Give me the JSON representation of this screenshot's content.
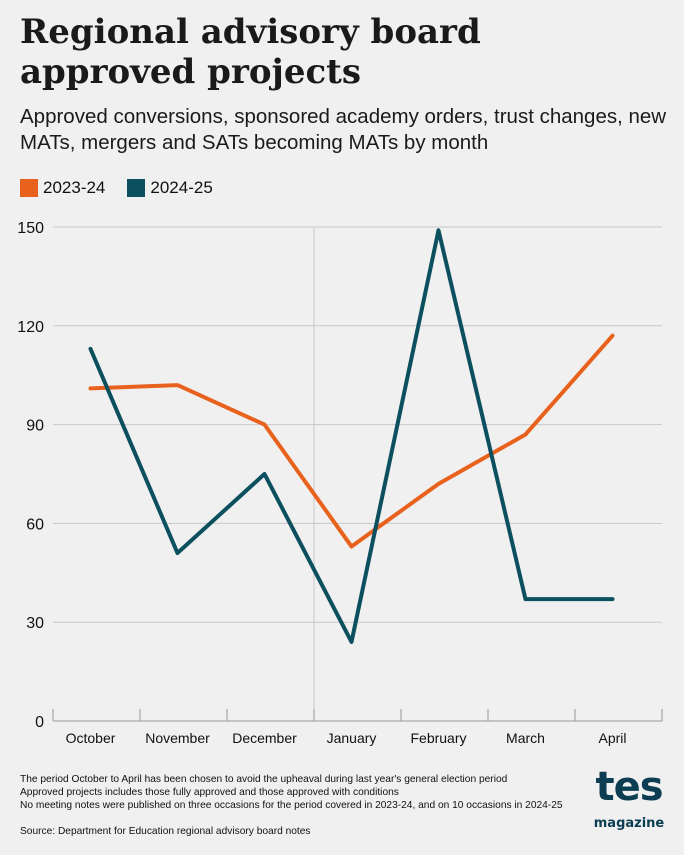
{
  "header": {
    "title": "Regional advisory board approved projects",
    "subtitle": "Approved conversions, sponsored academy orders, trust changes, new MATs, mergers and SATs becoming MATs by month"
  },
  "legend": [
    {
      "label": "2023-24",
      "color": "#e8621e"
    },
    {
      "label": "2024-25",
      "color": "#0c4f5e"
    }
  ],
  "chart_data": {
    "type": "line",
    "title": "Regional advisory board approved projects",
    "categories": [
      "October",
      "November",
      "December",
      "January",
      "February",
      "March",
      "April"
    ],
    "series": [
      {
        "name": "2023-24",
        "color": "#e8621e",
        "values": [
          101,
          102,
          90,
          53,
          72,
          87,
          117
        ]
      },
      {
        "name": "2024-25",
        "color": "#0c4f5e",
        "values": [
          113,
          51,
          75,
          24,
          149,
          37,
          37
        ]
      }
    ],
    "yticks": [
      0,
      30,
      60,
      90,
      120,
      150
    ],
    "ylim": [
      0,
      150
    ],
    "grid": true,
    "legend_position": "top-left"
  },
  "notes": [
    "The period October to April has been chosen to avoid the upheaval during last year's general election period",
    "Approved projects includes those fully approved and those approved with conditions",
    "No meeting notes were published on three occasions for the period covered in 2023-24, and on 10 occasions in 2024-25"
  ],
  "source": "Source: Department for Education regional advisory board notes",
  "logo": {
    "main": "tes",
    "sub": "magazine"
  }
}
